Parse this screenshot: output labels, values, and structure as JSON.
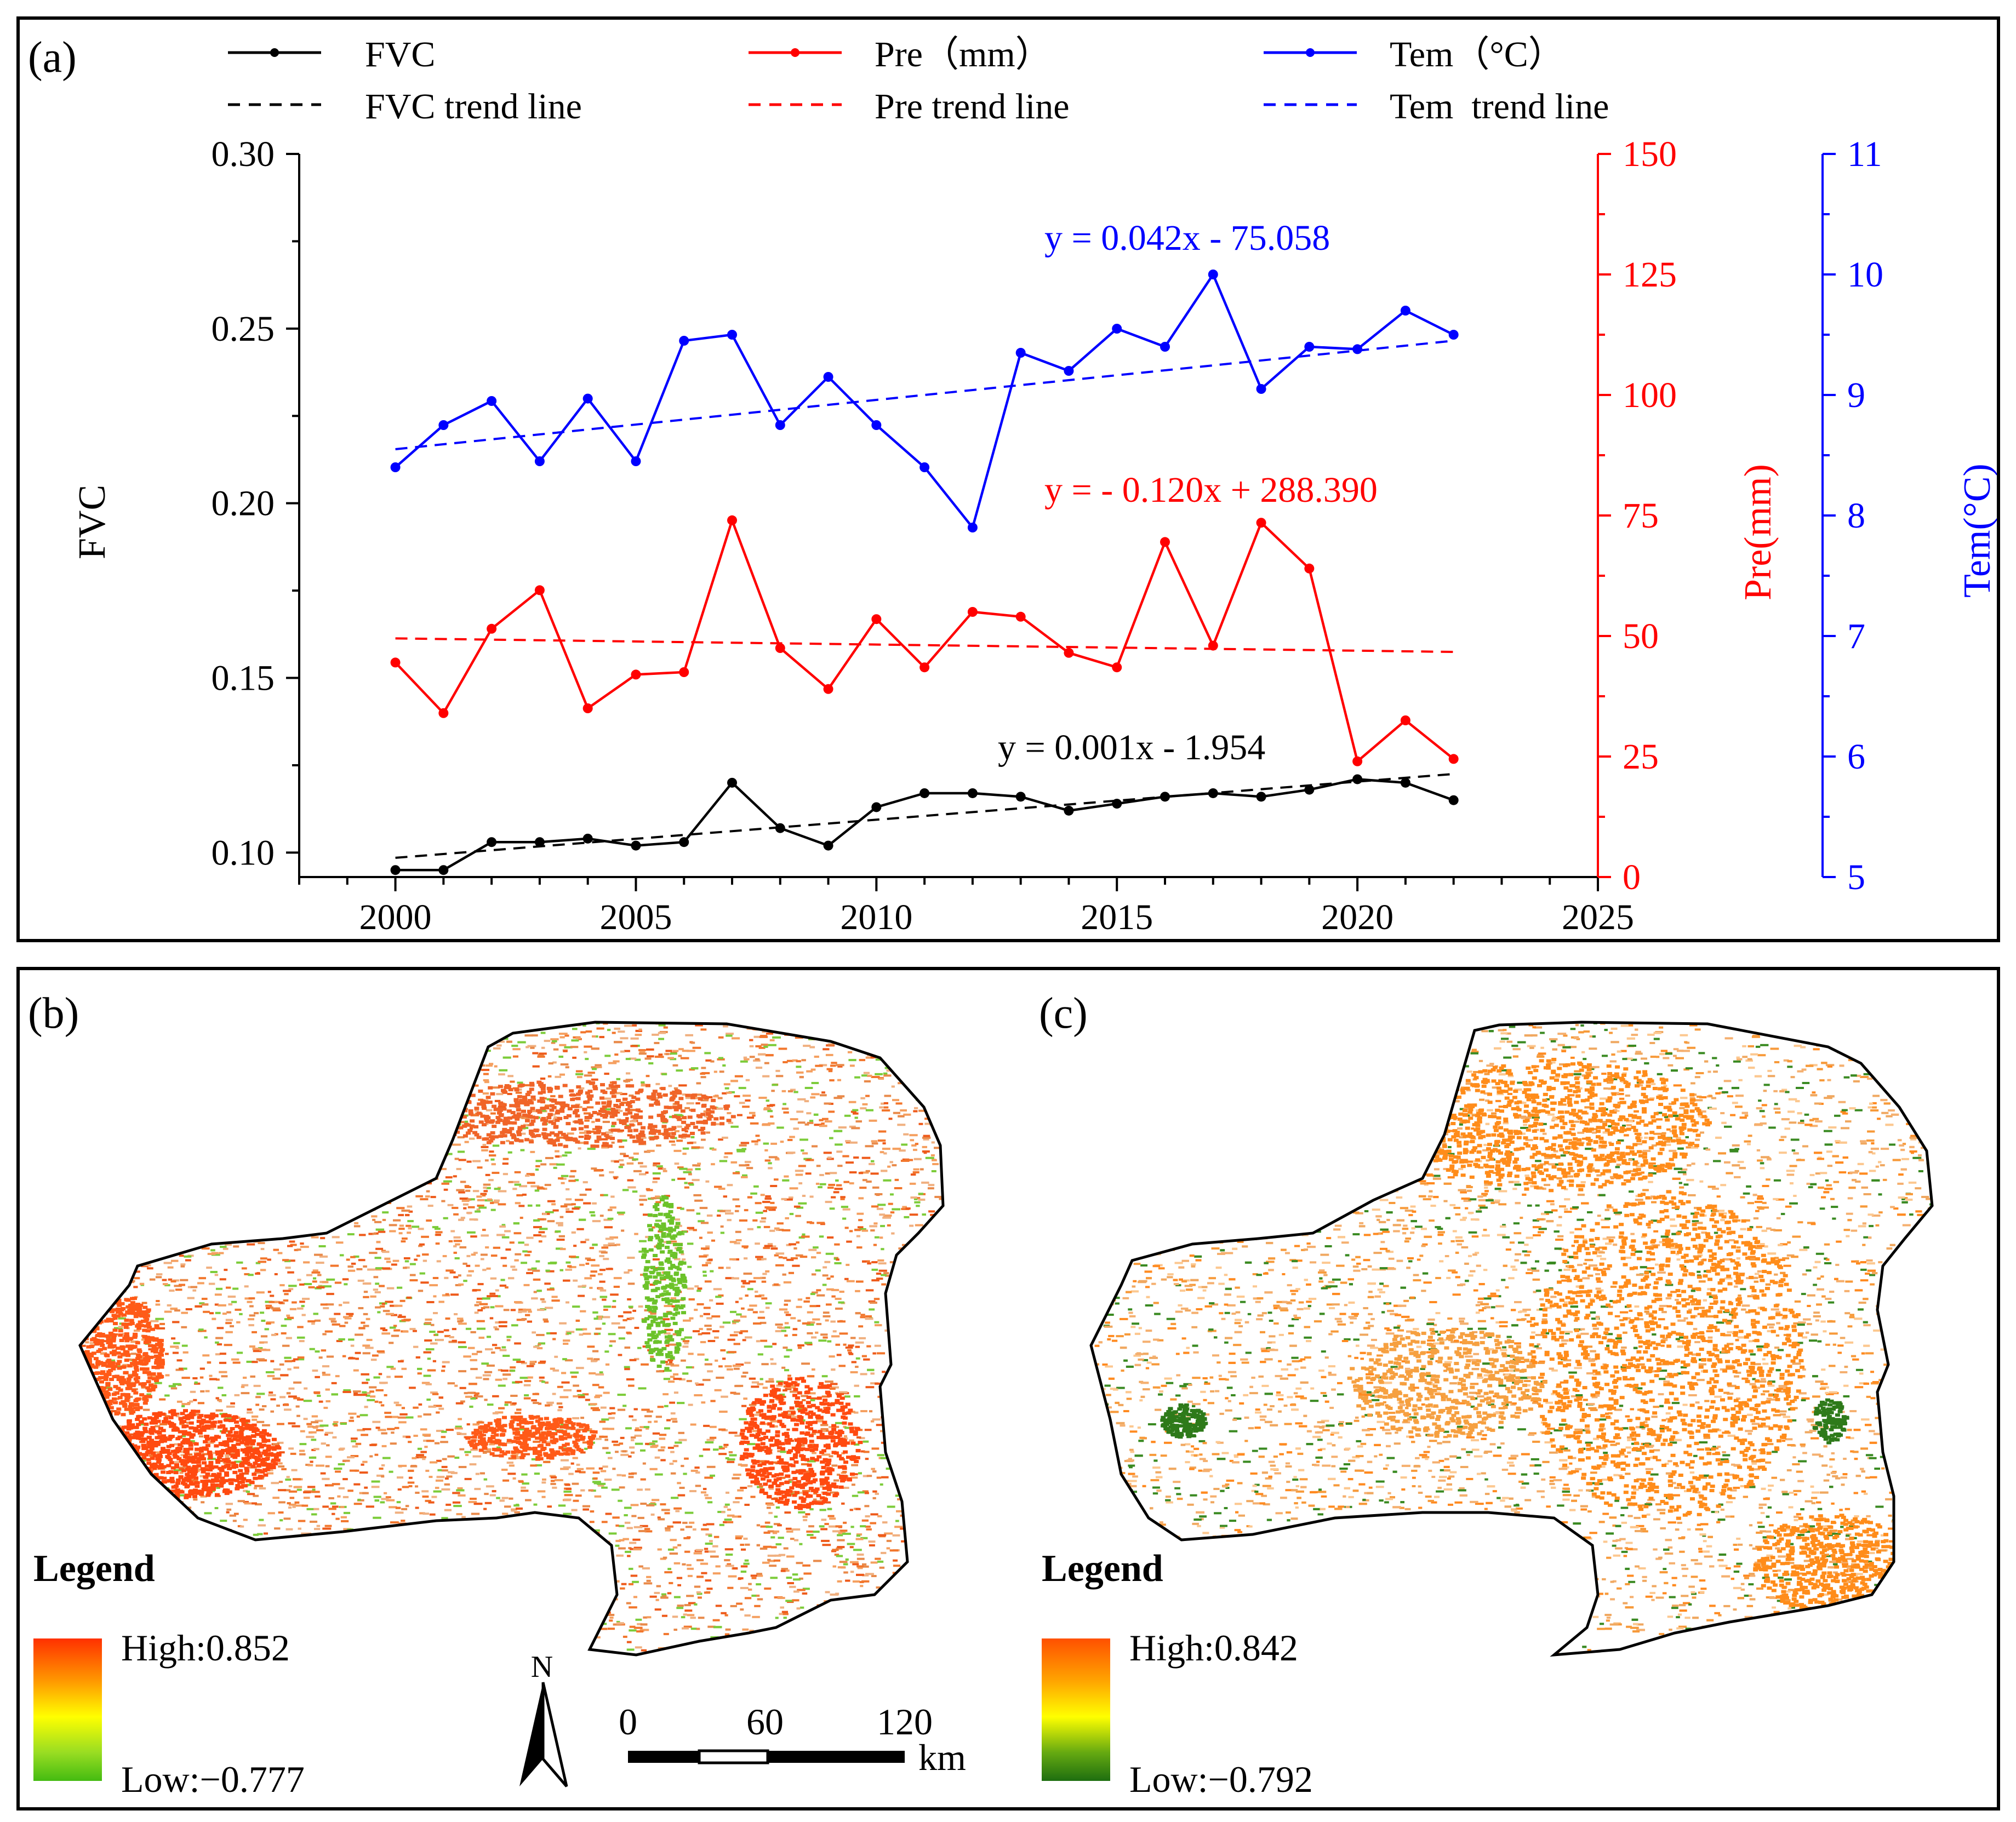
{
  "chart_data": [
    {
      "type": "line",
      "panel_label": "(a)",
      "x": [
        2000,
        2001,
        2002,
        2003,
        2004,
        2005,
        2006,
        2007,
        2008,
        2009,
        2010,
        2011,
        2012,
        2013,
        2014,
        2015,
        2016,
        2017,
        2018,
        2019,
        2020,
        2021,
        2022
      ],
      "xlim": [
        1998,
        2025
      ],
      "xticks": [
        "2000",
        "2005",
        "2010",
        "2015",
        "2020",
        "2025"
      ],
      "series": [
        {
          "name": "FVC",
          "axis": "left",
          "color": "#000000",
          "values": [
            0.095,
            0.095,
            0.103,
            0.103,
            0.104,
            0.102,
            0.103,
            0.12,
            0.107,
            0.102,
            0.113,
            0.117,
            0.117,
            0.116,
            0.112,
            0.114,
            0.116,
            0.117,
            0.116,
            0.118,
            0.121,
            0.12,
            0.115
          ]
        },
        {
          "name": "Pre（mm）",
          "axis": "right1",
          "color": "#ff0000",
          "values": [
            44.5,
            34.0,
            51.5,
            59.5,
            35.0,
            42.0,
            42.5,
            74.0,
            47.5,
            39.0,
            53.5,
            43.5,
            55.0,
            54.0,
            46.5,
            43.5,
            69.5,
            48.0,
            73.5,
            64.0,
            24.0,
            32.5,
            24.5
          ]
        },
        {
          "name": "Tem（°C）",
          "axis": "right2",
          "color": "#0000ff",
          "values": [
            8.4,
            8.75,
            8.95,
            8.45,
            8.97,
            8.45,
            9.45,
            9.5,
            8.75,
            9.15,
            8.75,
            8.4,
            7.9,
            9.35,
            9.2,
            9.55,
            9.4,
            10.0,
            9.05,
            9.4,
            9.38,
            9.7,
            9.5
          ]
        }
      ],
      "trend_lines": [
        {
          "name": "FVC trend line",
          "color": "#000000",
          "y_start": 0.0985,
          "y_end": 0.1225,
          "equation": "y = 0.001x - 1.954"
        },
        {
          "name": "Pre trend line",
          "color": "#ff0000",
          "y_start": 49.5,
          "y_end": 46.7,
          "equation": "y = - 0.120x + 288.390"
        },
        {
          "name": "Tem  trend line",
          "color": "#0000ff",
          "y_start": 8.55,
          "y_end": 9.45,
          "equation": "y = 0.042x - 75.058"
        }
      ],
      "axes": {
        "left": {
          "label": "FVC",
          "ylim": [
            0.093,
            0.3
          ],
          "ticks": [
            "0.10",
            "0.15",
            "0.20",
            "0.25",
            "0.30"
          ],
          "color": "#000000"
        },
        "right1": {
          "label": "Pre(mm)",
          "ylim": [
            0,
            150
          ],
          "ticks": [
            "0",
            "25",
            "50",
            "75",
            "100",
            "125",
            "150"
          ],
          "color": "#ff0000"
        },
        "right2": {
          "label": "Tem(°C)",
          "ylim": [
            5,
            11
          ],
          "ticks": [
            "5",
            "6",
            "7",
            "8",
            "9",
            "10",
            "11"
          ],
          "color": "#0000ff"
        }
      },
      "legend": [
        "FVC",
        "FVC trend line",
        "Pre（mm）",
        "Pre trend line",
        "Tem（°C）",
        "Tem  trend line"
      ]
    },
    {
      "type": "heatmap",
      "panel_label": "(b)",
      "legend_title": "Legend",
      "high_label": "High:0.852",
      "low_label": "Low:−0.777",
      "colors": [
        "#ff3000",
        "#ff9900",
        "#ffff00",
        "#99dd22",
        "#44bb11"
      ]
    },
    {
      "type": "heatmap",
      "panel_label": "(c)",
      "legend_title": "Legend",
      "high_label": "High:0.842",
      "low_label": "Low:−0.792",
      "colors": [
        "#ff5000",
        "#ffa500",
        "#ffff00",
        "#66aa11",
        "#1e6e10"
      ]
    }
  ],
  "scalebar": {
    "north": "N",
    "ticks": [
      "0",
      "60",
      "120"
    ],
    "unit": "km"
  },
  "colors": {
    "fvc": "#000000",
    "pre": "#ff0000",
    "tem": "#0000ff",
    "map_b_high": "#ff3c00",
    "map_b_low": "#55c01a",
    "map_c_high": "#ff7a00",
    "map_c_low": "#2a7a12"
  }
}
